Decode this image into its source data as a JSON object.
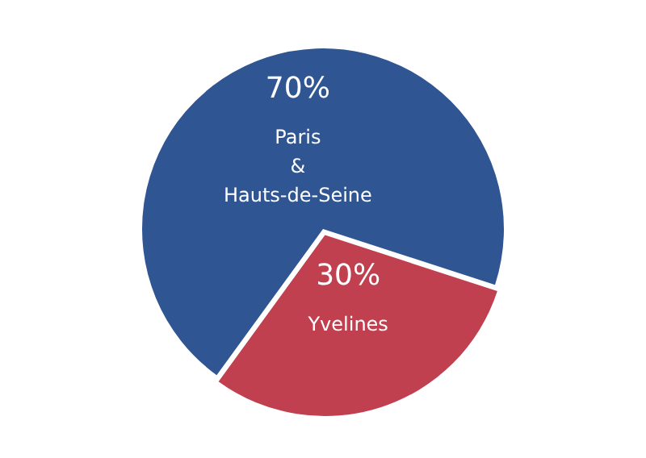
{
  "chart_data": {
    "type": "pie",
    "categories": [
      "Paris & Hauts-de-Seine",
      "Yvelines"
    ],
    "values": [
      70,
      30
    ],
    "colors": [
      "#2f5592",
      "#c0404f"
    ],
    "value_labels": [
      "70%",
      "30%"
    ],
    "legend": false
  }
}
